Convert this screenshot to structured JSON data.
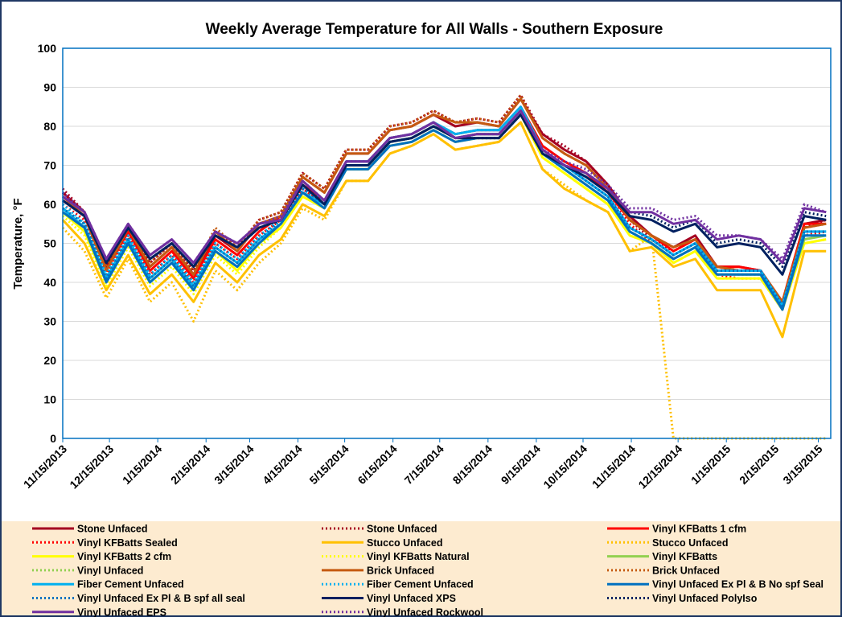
{
  "chart_data": {
    "type": "line",
    "title": "Weekly Average Temperature for All Walls - Southern Exposure",
    "y_label": "Temperature, °F",
    "x": [
      "11/15/2013",
      "11/29/2013",
      "12/13/2013",
      "12/27/2013",
      "1/10/2014",
      "1/24/2014",
      "2/7/2014",
      "2/21/2014",
      "3/7/2014",
      "3/21/2014",
      "4/4/2014",
      "4/18/2014",
      "5/2/2014",
      "5/16/2014",
      "5/30/2014",
      "6/13/2014",
      "6/27/2014",
      "7/11/2014",
      "7/25/2014",
      "8/8/2014",
      "8/22/2014",
      "9/5/2014",
      "9/19/2014",
      "10/3/2014",
      "10/17/2014",
      "10/31/2014",
      "11/14/2014",
      "11/28/2014",
      "12/12/2014",
      "12/26/2014",
      "1/9/2015",
      "1/23/2015",
      "2/6/2015",
      "2/20/2015",
      "3/6/2015",
      "3/20/2015"
    ],
    "xlim": [
      "11/15/2013",
      "3/23/2015"
    ],
    "xticks": [
      "11/15/2013",
      "12/15/2013",
      "1/15/2014",
      "2/15/2014",
      "3/15/2014",
      "4/15/2014",
      "5/15/2014",
      "6/15/2014",
      "7/15/2014",
      "8/15/2014",
      "9/15/2014",
      "10/15/2014",
      "11/15/2014",
      "12/15/2014",
      "1/15/2015",
      "2/15/2015",
      "3/15/2015"
    ],
    "ylim": [
      0,
      100
    ],
    "yticks": [
      0,
      10,
      20,
      30,
      40,
      50,
      60,
      70,
      80,
      90,
      100
    ],
    "grid": true,
    "series": [
      {
        "name": "Stone Unfaced",
        "color": "#a50021",
        "style": "solid",
        "values": [
          63,
          58,
          44,
          54,
          44,
          49,
          42,
          52,
          48,
          55,
          57,
          67,
          63,
          73,
          73,
          79,
          80,
          83,
          80,
          81,
          80,
          87,
          78,
          74,
          71,
          65,
          57,
          52,
          49,
          52,
          44,
          44,
          43,
          35,
          55,
          56
        ]
      },
      {
        "name": "Stone Unfaced",
        "color": "#a50021",
        "style": "dotted",
        "values": [
          64,
          58,
          44,
          55,
          45,
          50,
          43,
          53,
          49,
          56,
          58,
          68,
          64,
          74,
          74,
          80,
          81,
          84,
          81,
          82,
          81,
          88,
          78,
          75,
          71,
          65,
          56,
          51,
          48,
          51,
          44,
          43,
          43,
          35,
          54,
          56
        ]
      },
      {
        "name": "Vinyl KFBatts 1 cfm",
        "color": "#ff0000",
        "style": "solid",
        "values": [
          61,
          57,
          43,
          53,
          43,
          48,
          41,
          51,
          47,
          53,
          57,
          65,
          61,
          71,
          71,
          77,
          78,
          81,
          78,
          79,
          79,
          85,
          75,
          71,
          68,
          63,
          56,
          52,
          48,
          51,
          44,
          44,
          43,
          35,
          55,
          55
        ]
      },
      {
        "name": "Vinyl KFBatts Sealed",
        "color": "#ff0000",
        "style": "dotted",
        "values": [
          60,
          56,
          42,
          52,
          42,
          47,
          40,
          50,
          46,
          52,
          56,
          64,
          60,
          70,
          70,
          76,
          77,
          80,
          77,
          78,
          78,
          84,
          74,
          70,
          66,
          62,
          55,
          50,
          46,
          49,
          42,
          41,
          41,
          33,
          52,
          53
        ]
      },
      {
        "name": "Stucco Unfaced",
        "color": "#ffc000",
        "style": "solid",
        "values": [
          56,
          50,
          38,
          47,
          37,
          42,
          35,
          45,
          40,
          47,
          51,
          60,
          57,
          66,
          66,
          73,
          75,
          78,
          74,
          75,
          76,
          81,
          69,
          64,
          61,
          58,
          48,
          49,
          44,
          46,
          38,
          38,
          38,
          26,
          48,
          48
        ]
      },
      {
        "name": "Stucco Unfaced",
        "color": "#ffc000",
        "style": "dotted",
        "values": [
          54,
          48,
          36,
          46,
          35,
          40,
          30,
          43,
          38,
          45,
          50,
          59,
          56,
          66,
          66,
          73,
          75,
          78,
          74,
          75,
          76,
          81,
          69,
          65,
          61,
          58,
          48,
          52,
          0,
          0,
          0,
          0,
          0,
          0,
          0,
          0
        ]
      },
      {
        "name": "Vinyl KFBatts 2 cfm",
        "color": "#ffff00",
        "style": "solid",
        "values": [
          58,
          53,
          40,
          50,
          40,
          45,
          38,
          48,
          43,
          50,
          54,
          62,
          59,
          69,
          69,
          75,
          76,
          79,
          76,
          77,
          77,
          83,
          72,
          68,
          64,
          60,
          52,
          50,
          45,
          48,
          41,
          41,
          41,
          33,
          50,
          51
        ]
      },
      {
        "name": "Vinyl KFBatts Natural",
        "color": "#ffff00",
        "style": "dotted",
        "values": [
          57,
          52,
          39,
          49,
          39,
          44,
          37,
          47,
          42,
          49,
          54,
          62,
          59,
          69,
          69,
          75,
          76,
          79,
          76,
          77,
          77,
          83,
          72,
          68,
          64,
          60,
          52,
          50,
          45,
          48,
          41,
          41,
          41,
          33,
          50,
          51
        ]
      },
      {
        "name": "Vinyl KFBatts",
        "color": "#92d050",
        "style": "solid",
        "values": [
          59,
          54,
          41,
          51,
          41,
          46,
          39,
          49,
          45,
          51,
          55,
          63,
          60,
          70,
          70,
          76,
          77,
          80,
          77,
          78,
          78,
          84,
          73,
          69,
          65,
          61,
          53,
          50,
          46,
          49,
          42,
          42,
          42,
          34,
          51,
          52
        ]
      },
      {
        "name": "Vinyl Unfaced",
        "color": "#92d050",
        "style": "dotted",
        "values": [
          59,
          55,
          41,
          51,
          41,
          46,
          39,
          49,
          45,
          51,
          55,
          63,
          60,
          70,
          70,
          76,
          77,
          80,
          77,
          78,
          78,
          84,
          73,
          69,
          65,
          61,
          53,
          50,
          46,
          49,
          42,
          42,
          42,
          34,
          52,
          52
        ]
      },
      {
        "name": "Brick Unfaced",
        "color": "#c55a11",
        "style": "solid",
        "values": [
          62,
          57,
          43,
          54,
          44,
          49,
          42,
          53,
          48,
          55,
          57,
          67,
          63,
          73,
          73,
          79,
          80,
          83,
          81,
          81,
          80,
          87,
          77,
          73,
          70,
          64,
          56,
          52,
          49,
          51,
          44,
          43,
          43,
          35,
          54,
          55
        ]
      },
      {
        "name": "Brick Unfaced",
        "color": "#c55a11",
        "style": "dotted",
        "values": [
          63,
          58,
          44,
          55,
          45,
          50,
          43,
          54,
          49,
          56,
          58,
          68,
          64,
          74,
          74,
          80,
          81,
          84,
          81,
          82,
          81,
          88,
          77,
          73,
          70,
          64,
          56,
          52,
          49,
          51,
          44,
          43,
          43,
          35,
          54,
          55
        ]
      },
      {
        "name": "Fiber Cement Unfaced",
        "color": "#00b0f0",
        "style": "solid",
        "values": [
          59,
          54,
          41,
          51,
          41,
          46,
          39,
          49,
          45,
          51,
          55,
          63,
          60,
          71,
          71,
          77,
          78,
          81,
          78,
          79,
          79,
          85,
          74,
          70,
          66,
          62,
          54,
          51,
          47,
          50,
          43,
          43,
          43,
          34,
          53,
          53
        ]
      },
      {
        "name": "Fiber Cement Unfaced",
        "color": "#00b0f0",
        "style": "dotted",
        "values": [
          60,
          55,
          42,
          52,
          42,
          47,
          40,
          50,
          46,
          52,
          56,
          64,
          61,
          71,
          71,
          77,
          78,
          81,
          78,
          79,
          79,
          85,
          74,
          70,
          66,
          62,
          54,
          51,
          47,
          50,
          43,
          43,
          43,
          34,
          53,
          53
        ]
      },
      {
        "name": "Vinyl Unfaced Ex Pl & B No spf Seal",
        "color": "#0070c0",
        "style": "solid",
        "values": [
          58,
          54,
          40,
          50,
          40,
          45,
          38,
          48,
          44,
          50,
          55,
          63,
          59,
          69,
          69,
          75,
          76,
          79,
          76,
          77,
          77,
          83,
          73,
          69,
          65,
          61,
          53,
          50,
          46,
          49,
          42,
          42,
          42,
          33,
          52,
          52
        ]
      },
      {
        "name": "Vinyl Unfaced Ex Pl & B spf all seal",
        "color": "#0070c0",
        "style": "dotted",
        "values": [
          59,
          55,
          41,
          51,
          41,
          46,
          39,
          49,
          45,
          51,
          56,
          64,
          60,
          70,
          70,
          76,
          77,
          80,
          77,
          78,
          78,
          84,
          74,
          70,
          66,
          62,
          54,
          51,
          47,
          50,
          43,
          43,
          43,
          34,
          53,
          53
        ]
      },
      {
        "name": "Vinyl Unfaced XPS",
        "color": "#002060",
        "style": "solid",
        "values": [
          61,
          57,
          45,
          54,
          46,
          50,
          44,
          52,
          49,
          54,
          56,
          65,
          60,
          70,
          70,
          76,
          77,
          80,
          77,
          77,
          77,
          83,
          73,
          70,
          67,
          63,
          57,
          56,
          53,
          55,
          49,
          50,
          49,
          42,
          57,
          56
        ]
      },
      {
        "name": "Vinyl Unfaced PolyIso",
        "color": "#002060",
        "style": "dotted",
        "values": [
          61,
          57,
          45,
          54,
          46,
          50,
          44,
          52,
          49,
          54,
          56,
          65,
          60,
          70,
          70,
          76,
          77,
          80,
          77,
          77,
          77,
          83,
          73,
          70,
          68,
          64,
          58,
          57,
          54,
          56,
          50,
          51,
          50,
          44,
          58,
          57
        ]
      },
      {
        "name": "Vinyl Unfaced EPS",
        "color": "#7030a0",
        "style": "solid",
        "values": [
          62,
          58,
          46,
          55,
          47,
          51,
          45,
          53,
          50,
          55,
          56,
          66,
          61,
          71,
          71,
          77,
          78,
          81,
          77,
          78,
          78,
          84,
          74,
          70,
          68,
          64,
          58,
          58,
          55,
          56,
          51,
          52,
          51,
          45,
          59,
          58
        ]
      },
      {
        "name": "Vinyl Unfaced Rockwool",
        "color": "#7030a0",
        "style": "dotted",
        "values": [
          63,
          58,
          46,
          55,
          47,
          51,
          45,
          53,
          50,
          55,
          57,
          66,
          61,
          71,
          71,
          77,
          78,
          81,
          77,
          78,
          78,
          84,
          74,
          71,
          69,
          65,
          59,
          59,
          56,
          57,
          52,
          52,
          51,
          46,
          60,
          58
        ]
      }
    ]
  }
}
